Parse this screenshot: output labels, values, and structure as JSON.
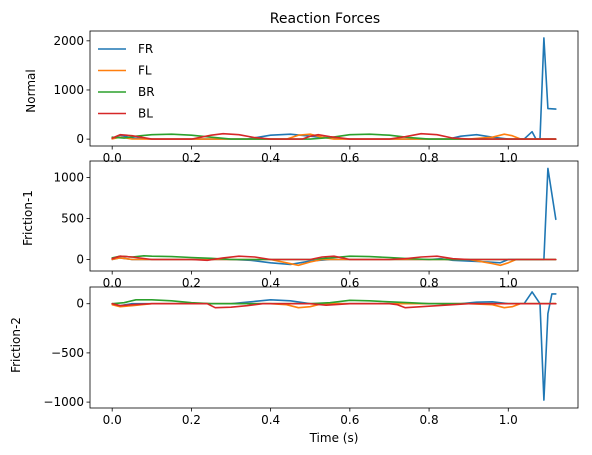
{
  "chart_data": {
    "type": "line",
    "title": "Reaction Forces",
    "xlabel": "Time (s)",
    "series_styles": [
      {
        "name": "FR",
        "color": "#1f77b4"
      },
      {
        "name": "FL",
        "color": "#ff7f0e"
      },
      {
        "name": "BR",
        "color": "#2ca02c"
      },
      {
        "name": "BL",
        "color": "#d62728"
      }
    ],
    "legend_position": "upper-left",
    "subplots": [
      {
        "ylabel": "Normal",
        "xlim": [
          -0.056,
          1.176
        ],
        "ylim": [
          -140,
          2200
        ],
        "xticks": [
          0.0,
          0.2,
          0.4,
          0.6,
          0.8,
          1.0
        ],
        "xtick_labels": [
          "0.0",
          "0.2",
          "0.4",
          "0.6",
          "0.8",
          "1.0"
        ],
        "yticks": [
          0,
          1000,
          2000
        ],
        "ytick_labels": [
          "0",
          "1000",
          "2000"
        ],
        "series": [
          {
            "name": "FR",
            "x": [
              0.0,
              0.02,
              0.05,
              0.1,
              0.2,
              0.3,
              0.34,
              0.4,
              0.45,
              0.5,
              0.55,
              0.6,
              0.7,
              0.75,
              0.8,
              0.85,
              0.88,
              0.92,
              0.96,
              1.0,
              1.04,
              1.06,
              1.07,
              1.08,
              1.09,
              1.1,
              1.12
            ],
            "y": [
              10,
              80,
              20,
              0,
              0,
              0,
              0,
              80,
              100,
              60,
              20,
              0,
              0,
              0,
              0,
              5,
              60,
              90,
              40,
              0,
              0,
              150,
              0,
              0,
              2060,
              620,
              610
            ]
          },
          {
            "name": "FL",
            "x": [
              0.0,
              0.02,
              0.05,
              0.1,
              0.2,
              0.3,
              0.4,
              0.44,
              0.47,
              0.5,
              0.53,
              0.56,
              0.6,
              0.7,
              0.8,
              0.9,
              0.96,
              0.99,
              1.01,
              1.03,
              1.06,
              1.12
            ],
            "y": [
              5,
              40,
              5,
              0,
              0,
              0,
              0,
              0,
              80,
              100,
              40,
              0,
              0,
              0,
              0,
              0,
              40,
              100,
              70,
              5,
              0,
              0
            ]
          },
          {
            "name": "BR",
            "x": [
              0.0,
              0.03,
              0.06,
              0.1,
              0.15,
              0.2,
              0.25,
              0.3,
              0.4,
              0.5,
              0.55,
              0.6,
              0.65,
              0.7,
              0.75,
              0.8,
              0.9,
              1.0,
              1.12
            ],
            "y": [
              40,
              20,
              60,
              90,
              100,
              80,
              40,
              0,
              0,
              0,
              30,
              90,
              100,
              80,
              30,
              0,
              0,
              0,
              0
            ]
          },
          {
            "name": "BL",
            "x": [
              0.0,
              0.02,
              0.05,
              0.1,
              0.15,
              0.2,
              0.25,
              0.28,
              0.32,
              0.36,
              0.4,
              0.48,
              0.5,
              0.52,
              0.55,
              0.6,
              0.7,
              0.74,
              0.78,
              0.82,
              0.86,
              0.9,
              1.0,
              1.12
            ],
            "y": [
              20,
              90,
              70,
              0,
              0,
              0,
              80,
              110,
              90,
              30,
              0,
              0,
              60,
              90,
              50,
              0,
              0,
              50,
              110,
              90,
              20,
              0,
              0,
              0
            ]
          }
        ]
      },
      {
        "ylabel": "Friction-1",
        "xlim": [
          -0.056,
          1.176
        ],
        "ylim": [
          -140,
          1200
        ],
        "xticks": [
          0.0,
          0.2,
          0.4,
          0.6,
          0.8,
          1.0
        ],
        "xtick_labels": [
          "0.0",
          "0.2",
          "0.4",
          "0.6",
          "0.8",
          "1.0"
        ],
        "yticks": [
          0,
          500,
          1000
        ],
        "ytick_labels": [
          "0",
          "500",
          "1000"
        ],
        "series": [
          {
            "name": "FR",
            "x": [
              0.0,
              0.02,
              0.05,
              0.1,
              0.2,
              0.3,
              0.35,
              0.4,
              0.45,
              0.5,
              0.55,
              0.6,
              0.7,
              0.8,
              0.83,
              0.86,
              0.9,
              0.95,
              0.98,
              1.0,
              1.05,
              1.08,
              1.09,
              1.1,
              1.12
            ],
            "y": [
              0,
              20,
              0,
              0,
              0,
              0,
              -10,
              -40,
              -60,
              -20,
              0,
              0,
              0,
              0,
              10,
              -10,
              -20,
              -30,
              -40,
              0,
              0,
              0,
              0,
              1110,
              490
            ]
          },
          {
            "name": "FL",
            "x": [
              0.0,
              0.02,
              0.05,
              0.1,
              0.2,
              0.3,
              0.4,
              0.44,
              0.47,
              0.5,
              0.53,
              0.56,
              0.6,
              0.7,
              0.8,
              0.9,
              0.96,
              0.98,
              1.0,
              1.02,
              1.05,
              1.12
            ],
            "y": [
              0,
              20,
              0,
              0,
              0,
              0,
              0,
              -40,
              -70,
              -30,
              0,
              0,
              0,
              0,
              0,
              0,
              -50,
              -70,
              -40,
              0,
              0,
              0
            ]
          },
          {
            "name": "BR",
            "x": [
              0.0,
              0.02,
              0.05,
              0.08,
              0.1,
              0.15,
              0.2,
              0.25,
              0.3,
              0.4,
              0.5,
              0.55,
              0.6,
              0.65,
              0.7,
              0.75,
              0.8,
              0.9,
              1.0,
              1.12
            ],
            "y": [
              20,
              40,
              30,
              45,
              40,
              35,
              25,
              15,
              0,
              0,
              0,
              20,
              40,
              35,
              25,
              10,
              0,
              0,
              0,
              0
            ]
          },
          {
            "name": "BL",
            "x": [
              0.0,
              0.02,
              0.05,
              0.1,
              0.2,
              0.24,
              0.28,
              0.32,
              0.36,
              0.4,
              0.5,
              0.53,
              0.56,
              0.6,
              0.7,
              0.74,
              0.78,
              0.82,
              0.86,
              0.9,
              1.0,
              1.12
            ],
            "y": [
              10,
              40,
              30,
              0,
              0,
              -10,
              20,
              40,
              30,
              0,
              0,
              30,
              40,
              0,
              0,
              10,
              30,
              40,
              10,
              0,
              0,
              0
            ]
          }
        ]
      },
      {
        "ylabel": "Friction-2",
        "xlim": [
          -0.056,
          1.176
        ],
        "ylim": [
          -1060,
          170
        ],
        "xticks": [
          0.0,
          0.2,
          0.4,
          0.6,
          0.8,
          1.0
        ],
        "xtick_labels": [
          "0.0",
          "0.2",
          "0.4",
          "0.6",
          "0.8",
          "1.0"
        ],
        "yticks": [
          -1000,
          -500,
          0
        ],
        "ytick_labels": [
          "−1000",
          "−500",
          "0"
        ],
        "series": [
          {
            "name": "FR",
            "x": [
              0.0,
              0.02,
              0.05,
              0.1,
              0.2,
              0.3,
              0.35,
              0.4,
              0.45,
              0.5,
              0.55,
              0.6,
              0.7,
              0.8,
              0.88,
              0.92,
              0.96,
              1.0,
              1.04,
              1.06,
              1.08,
              1.09,
              1.1,
              1.11,
              1.12
            ],
            "y": [
              0,
              -20,
              0,
              0,
              0,
              0,
              20,
              40,
              30,
              0,
              0,
              0,
              0,
              0,
              0,
              15,
              20,
              0,
              0,
              120,
              0,
              -980,
              -100,
              100,
              100
            ]
          },
          {
            "name": "FL",
            "x": [
              0.0,
              0.02,
              0.05,
              0.1,
              0.2,
              0.3,
              0.4,
              0.44,
              0.47,
              0.5,
              0.53,
              0.56,
              0.6,
              0.7,
              0.8,
              0.9,
              0.96,
              0.99,
              1.01,
              1.03,
              1.06,
              1.12
            ],
            "y": [
              -10,
              -30,
              -20,
              0,
              0,
              0,
              0,
              -10,
              -40,
              -30,
              0,
              0,
              0,
              0,
              0,
              0,
              -10,
              -40,
              -30,
              0,
              0,
              0
            ]
          },
          {
            "name": "BR",
            "x": [
              0.0,
              0.03,
              0.06,
              0.1,
              0.15,
              0.2,
              0.25,
              0.3,
              0.4,
              0.5,
              0.55,
              0.6,
              0.65,
              0.7,
              0.75,
              0.8,
              0.9,
              1.0,
              1.12
            ],
            "y": [
              0,
              10,
              40,
              40,
              30,
              10,
              0,
              0,
              0,
              0,
              10,
              35,
              30,
              20,
              10,
              0,
              0,
              0,
              0
            ]
          },
          {
            "name": "BL",
            "x": [
              0.0,
              0.02,
              0.05,
              0.1,
              0.2,
              0.24,
              0.26,
              0.3,
              0.34,
              0.38,
              0.4,
              0.5,
              0.54,
              0.58,
              0.6,
              0.7,
              0.72,
              0.74,
              0.78,
              0.82,
              0.86,
              0.9,
              1.0,
              1.12
            ],
            "y": [
              0,
              -20,
              -10,
              0,
              0,
              0,
              -40,
              -35,
              -20,
              0,
              0,
              0,
              -15,
              -5,
              0,
              0,
              -10,
              -40,
              -30,
              -20,
              -10,
              0,
              0,
              0
            ]
          }
        ]
      }
    ]
  }
}
